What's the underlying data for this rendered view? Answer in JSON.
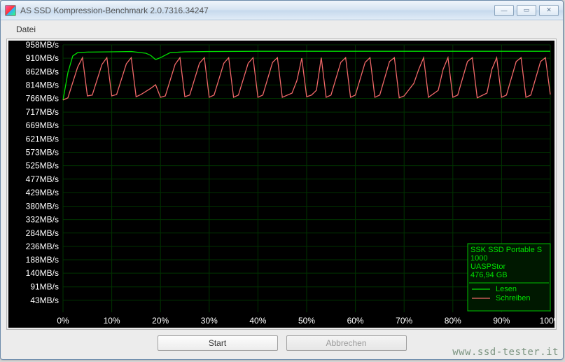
{
  "window": {
    "title": "AS SSD Kompression-Benchmark 2.0.7316.34247",
    "menu": {
      "datei": "Datei"
    },
    "buttons": {
      "minimize": "—",
      "maximize": "▭",
      "close": "✕"
    }
  },
  "chart": {
    "type": "line",
    "background_color": "#000000",
    "grid_color": "#003300",
    "text_color": "#ffffff",
    "y_axis": {
      "unit": "MB/s",
      "labels": [
        "958MB/s",
        "910MB/s",
        "862MB/s",
        "814MB/s",
        "766MB/s",
        "717MB/s",
        "669MB/s",
        "621MB/s",
        "573MB/s",
        "525MB/s",
        "477MB/s",
        "429MB/s",
        "380MB/s",
        "332MB/s",
        "284MB/s",
        "236MB/s",
        "188MB/s",
        "140MB/s",
        "91MB/s",
        "43MB/s"
      ],
      "values": [
        958,
        910,
        862,
        814,
        766,
        717,
        669,
        621,
        573,
        525,
        477,
        429,
        380,
        332,
        284,
        236,
        188,
        140,
        91,
        43
      ],
      "ymin": 0,
      "ymax": 958
    },
    "x_axis": {
      "labels": [
        "0%",
        "10%",
        "20%",
        "30%",
        "40%",
        "50%",
        "60%",
        "70%",
        "80%",
        "90%",
        "100%"
      ],
      "values": [
        0,
        10,
        20,
        30,
        40,
        50,
        60,
        70,
        80,
        90,
        100
      ]
    },
    "series": [
      {
        "name": "Lesen",
        "color": "#00e000",
        "points": [
          [
            0,
            760
          ],
          [
            1,
            858
          ],
          [
            2,
            918
          ],
          [
            3,
            930
          ],
          [
            5,
            932
          ],
          [
            10,
            933
          ],
          [
            14,
            934
          ],
          [
            17,
            928
          ],
          [
            18,
            920
          ],
          [
            19,
            905
          ],
          [
            20,
            912
          ],
          [
            22,
            930
          ],
          [
            25,
            933
          ],
          [
            30,
            934
          ],
          [
            40,
            935
          ],
          [
            50,
            935
          ],
          [
            60,
            935
          ],
          [
            70,
            935
          ],
          [
            80,
            935
          ],
          [
            90,
            935
          ],
          [
            100,
            935
          ]
        ]
      },
      {
        "name": "Schreiben",
        "color": "#f06868",
        "points": [
          [
            0,
            760
          ],
          [
            1,
            768
          ],
          [
            3,
            878
          ],
          [
            4,
            912
          ],
          [
            5,
            775
          ],
          [
            6,
            778
          ],
          [
            8,
            888
          ],
          [
            9,
            912
          ],
          [
            10,
            775
          ],
          [
            11,
            780
          ],
          [
            13,
            890
          ],
          [
            14,
            912
          ],
          [
            15,
            772
          ],
          [
            16,
            780
          ],
          [
            18,
            802
          ],
          [
            19,
            815
          ],
          [
            20,
            770
          ],
          [
            21,
            775
          ],
          [
            23,
            888
          ],
          [
            24,
            912
          ],
          [
            25,
            772
          ],
          [
            26,
            778
          ],
          [
            28,
            892
          ],
          [
            29,
            912
          ],
          [
            30,
            770
          ],
          [
            31,
            778
          ],
          [
            33,
            892
          ],
          [
            34,
            912
          ],
          [
            35,
            770
          ],
          [
            36,
            778
          ],
          [
            38,
            892
          ],
          [
            39,
            912
          ],
          [
            40,
            770
          ],
          [
            41,
            778
          ],
          [
            43,
            895
          ],
          [
            44,
            912
          ],
          [
            45,
            770
          ],
          [
            47,
            785
          ],
          [
            48,
            830
          ],
          [
            49,
            910
          ],
          [
            50,
            772
          ],
          [
            51,
            778
          ],
          [
            52,
            795
          ],
          [
            53,
            912
          ],
          [
            54,
            770
          ],
          [
            55,
            778
          ],
          [
            57,
            895
          ],
          [
            58,
            912
          ],
          [
            59,
            770
          ],
          [
            60,
            778
          ],
          [
            62,
            895
          ],
          [
            63,
            912
          ],
          [
            64,
            770
          ],
          [
            65,
            778
          ],
          [
            67,
            898
          ],
          [
            68,
            912
          ],
          [
            69,
            768
          ],
          [
            70,
            775
          ],
          [
            72,
            820
          ],
          [
            73,
            870
          ],
          [
            74,
            912
          ],
          [
            75,
            770
          ],
          [
            77,
            795
          ],
          [
            78,
            870
          ],
          [
            79,
            912
          ],
          [
            80,
            770
          ],
          [
            81,
            778
          ],
          [
            83,
            898
          ],
          [
            84,
            912
          ],
          [
            85,
            768
          ],
          [
            87,
            785
          ],
          [
            88,
            870
          ],
          [
            89,
            912
          ],
          [
            90,
            770
          ],
          [
            91,
            778
          ],
          [
            93,
            898
          ],
          [
            94,
            912
          ],
          [
            95,
            770
          ],
          [
            96,
            778
          ],
          [
            98,
            898
          ],
          [
            99,
            912
          ],
          [
            100,
            780
          ]
        ]
      }
    ],
    "legend": {
      "box_stroke": "#00c000",
      "box_fill": "#001800",
      "lines": [
        {
          "text": "SSK SSD Portable S",
          "color": "#00e000"
        },
        {
          "text": "1000",
          "color": "#00e000"
        },
        {
          "text": "UASPStor",
          "color": "#00e000"
        },
        {
          "text": "476,94 GB",
          "color": "#00e000"
        }
      ],
      "series_labels": [
        {
          "text": "Lesen",
          "color": "#00e000"
        },
        {
          "text": "Schreiben",
          "color": "#f06868"
        }
      ]
    }
  },
  "buttons": {
    "start": "Start",
    "abort": "Abbrechen"
  },
  "watermark": "www.ssd-tester.it"
}
